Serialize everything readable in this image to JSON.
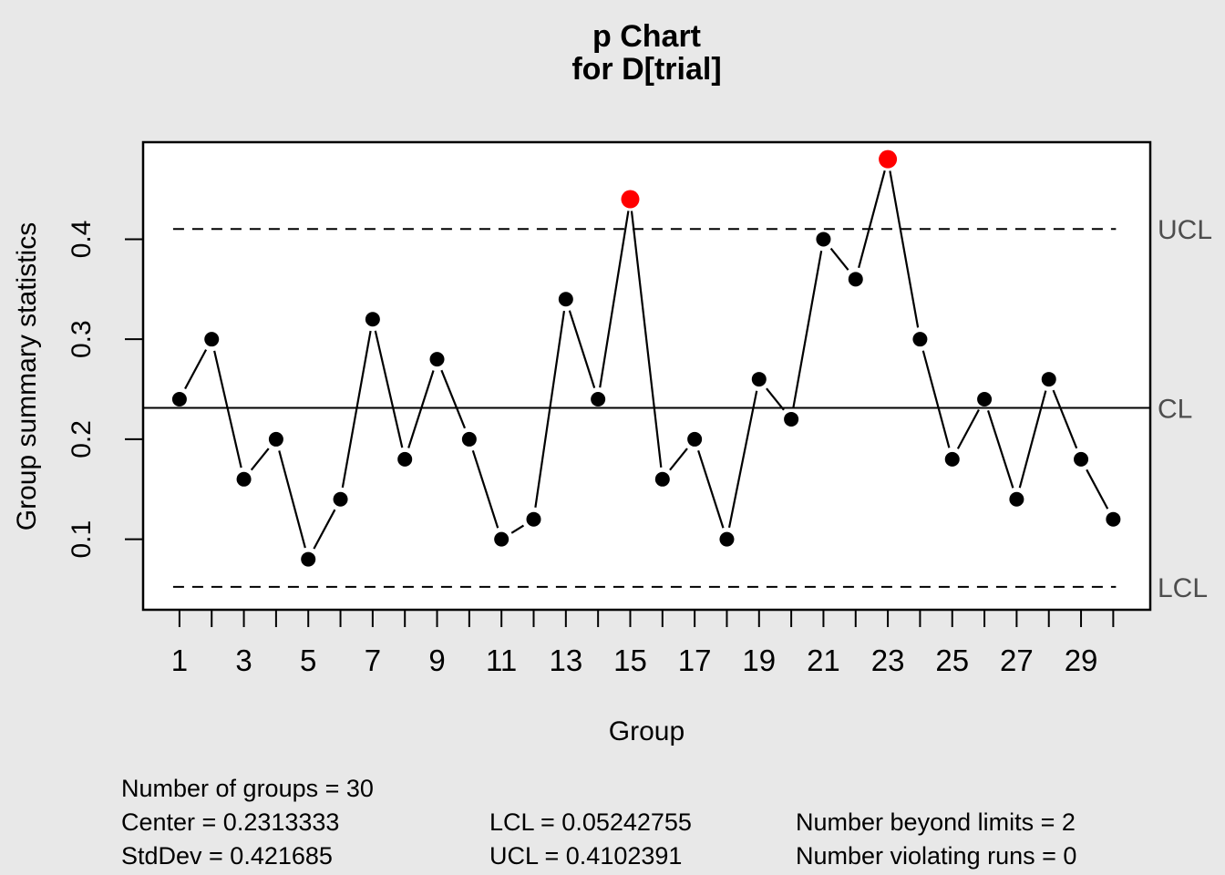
{
  "title": {
    "line1": "p Chart",
    "line2": "for D[trial]"
  },
  "axes": {
    "ylabel": "Group summary statistics",
    "xlabel": "Group"
  },
  "limit_labels": {
    "ucl": "UCL",
    "cl": "CL",
    "lcl": "LCL"
  },
  "stats": {
    "col1": [
      "Number of groups = 30",
      "Center = 0.2313333",
      "StdDev = 0.421685"
    ],
    "col2": [
      "LCL = 0.05242755",
      "UCL = 0.4102391"
    ],
    "col3": [
      "Number beyond limits = 2",
      "Number violating runs = 0"
    ]
  },
  "chart_data": {
    "type": "line",
    "title": "p Chart for D[trial]",
    "xlabel": "Group",
    "ylabel": "Group summary statistics",
    "x": [
      1,
      2,
      3,
      4,
      5,
      6,
      7,
      8,
      9,
      10,
      11,
      12,
      13,
      14,
      15,
      16,
      17,
      18,
      19,
      20,
      21,
      22,
      23,
      24,
      25,
      26,
      27,
      28,
      29,
      30
    ],
    "values": [
      0.24,
      0.3,
      0.16,
      0.2,
      0.08,
      0.14,
      0.32,
      0.18,
      0.28,
      0.2,
      0.1,
      0.12,
      0.34,
      0.24,
      0.44,
      0.16,
      0.2,
      0.1,
      0.26,
      0.22,
      0.4,
      0.36,
      0.48,
      0.3,
      0.18,
      0.24,
      0.14,
      0.26,
      0.18,
      0.12
    ],
    "beyond_limit_points": [
      15,
      23
    ],
    "center": 0.2313333,
    "stddev": 0.421685,
    "lcl": 0.05242755,
    "ucl": 0.4102391,
    "number_of_groups": 30,
    "number_beyond_limits": 2,
    "number_violating_runs": 0,
    "y_ticks": [
      0.1,
      0.2,
      0.3,
      0.4
    ],
    "x_tick_labels": [
      1,
      3,
      5,
      7,
      9,
      11,
      13,
      15,
      17,
      19,
      21,
      23,
      25,
      27,
      29
    ],
    "ylim": [
      0.0295,
      0.497
    ],
    "xlim": [
      -0.13,
      31.15
    ],
    "grid": false,
    "legend": "none",
    "colors": {
      "point": "#000000",
      "beyond_limit_point": "#ff0000",
      "line": "#000000",
      "limit_label_gray": "#4d4d4d",
      "background": "#e8e8e8",
      "plot_background": "#ffffff"
    }
  }
}
